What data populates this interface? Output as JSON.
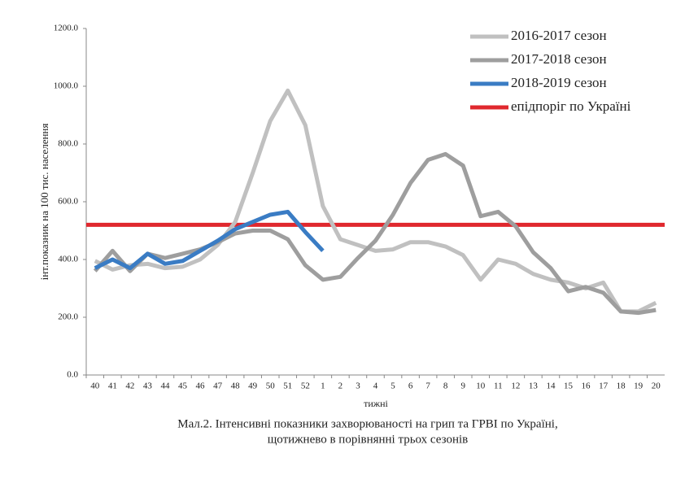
{
  "chart_data": {
    "type": "line",
    "y_label": "інт.показник на 100 тис. населення",
    "x_label": "тижні",
    "caption": [
      "Мал.2. Інтенсивні показники захворюваності на грип та ГРВІ по Україні,",
      "щотижнево в порівнянні трьох сезонів"
    ],
    "categories": [
      "40",
      "41",
      "42",
      "43",
      "44",
      "45",
      "46",
      "47",
      "48",
      "49",
      "50",
      "51",
      "52",
      "1",
      "2",
      "3",
      "4",
      "5",
      "6",
      "7",
      "8",
      "9",
      "10",
      "11",
      "12",
      "13",
      "14",
      "15",
      "16",
      "17",
      "18",
      "19",
      "20"
    ],
    "series": [
      {
        "name": "2016-2017 сезон",
        "color": "#c0c0c0",
        "values": [
          395,
          365,
          380,
          385,
          370,
          375,
          400,
          450,
          530,
          700,
          880,
          985,
          865,
          585,
          470,
          450,
          430,
          435,
          460,
          460,
          445,
          415,
          330,
          400,
          385,
          350,
          330,
          320,
          300,
          320,
          220,
          220,
          250
        ]
      },
      {
        "name": "2017-2018 сезон",
        "color": "#9e9e9e",
        "values": [
          360,
          430,
          360,
          420,
          405,
          420,
          435,
          460,
          490,
          500,
          500,
          470,
          380,
          330,
          340,
          405,
          465,
          555,
          665,
          745,
          765,
          725,
          550,
          565,
          515,
          425,
          370,
          290,
          305,
          285,
          220,
          215,
          225
        ]
      },
      {
        "name": "2018-2019 сезон",
        "color": "#3a7cc4",
        "values": [
          370,
          400,
          370,
          420,
          385,
          395,
          430,
          465,
          505,
          530,
          555,
          565,
          495,
          430,
          null,
          null,
          null,
          null,
          null,
          null,
          null,
          null,
          null,
          null,
          null,
          null,
          null,
          null,
          null,
          null,
          null,
          null,
          null
        ]
      }
    ],
    "threshold": {
      "name": "епідпоріг по Україні",
      "color": "#e0282e",
      "value": 520
    },
    "ylim": [
      0,
      1200
    ],
    "yticks": [
      {
        "value": 0,
        "label": "0.0"
      },
      {
        "value": 200,
        "label": "200.0"
      },
      {
        "value": 400,
        "label": "400.0"
      },
      {
        "value": 600,
        "label": "600.0"
      },
      {
        "value": 800,
        "label": "800.0"
      },
      {
        "value": 1000,
        "label": "1000.0"
      },
      {
        "value": 1200,
        "label": "1200.0"
      }
    ],
    "legend": "top-right"
  }
}
